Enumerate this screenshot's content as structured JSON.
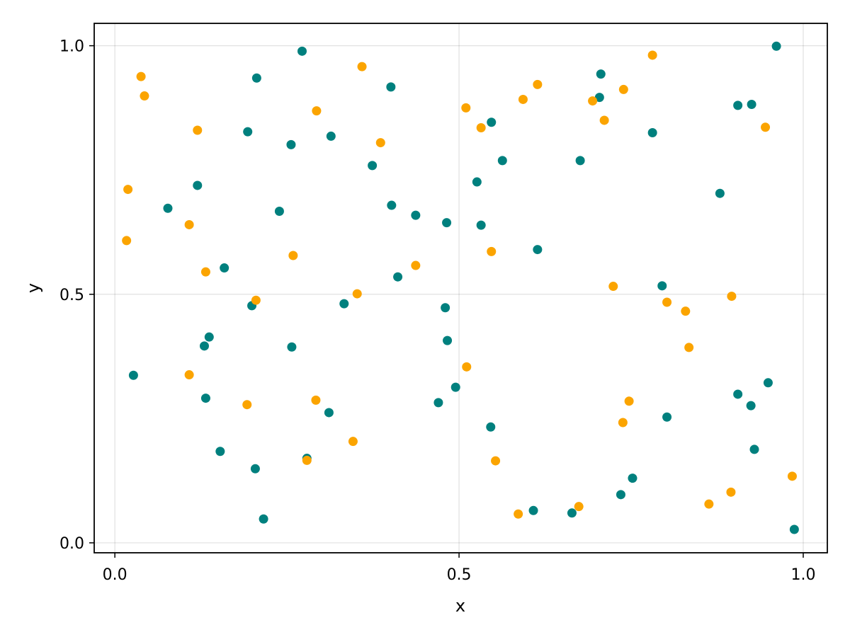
{
  "chart_data": {
    "type": "scatter",
    "title": "",
    "xlabel": "x",
    "ylabel": "y",
    "xlim": [
      -0.03,
      1.035
    ],
    "ylim": [
      -0.02,
      1.045
    ],
    "xticks": [
      0.0,
      0.5,
      1.0
    ],
    "yticks": [
      0.0,
      0.5,
      1.0
    ],
    "xtick_labels": [
      "0.0",
      "0.5",
      "1.0"
    ],
    "ytick_labels": [
      "0.0",
      "0.5",
      "1.0"
    ],
    "grid": true,
    "series": [
      {
        "color": "#00807e",
        "points": [
          [
            0.272,
            0.989
          ],
          [
            0.206,
            0.935
          ],
          [
            0.401,
            0.917
          ],
          [
            0.193,
            0.827
          ],
          [
            0.314,
            0.818
          ],
          [
            0.256,
            0.801
          ],
          [
            0.374,
            0.759
          ],
          [
            0.12,
            0.719
          ],
          [
            0.077,
            0.673
          ],
          [
            0.402,
            0.679
          ],
          [
            0.239,
            0.667
          ],
          [
            0.437,
            0.659
          ],
          [
            0.482,
            0.644
          ],
          [
            0.159,
            0.553
          ],
          [
            0.411,
            0.535
          ],
          [
            0.333,
            0.481
          ],
          [
            0.199,
            0.477
          ],
          [
            0.48,
            0.473
          ],
          [
            0.137,
            0.414
          ],
          [
            0.13,
            0.396
          ],
          [
            0.257,
            0.394
          ],
          [
            0.483,
            0.407
          ],
          [
            0.027,
            0.337
          ],
          [
            0.495,
            0.313
          ],
          [
            0.132,
            0.291
          ],
          [
            0.47,
            0.282
          ],
          [
            0.311,
            0.262
          ],
          [
            0.153,
            0.184
          ],
          [
            0.279,
            0.17
          ],
          [
            0.204,
            0.149
          ],
          [
            0.216,
            0.048
          ],
          [
            0.547,
            0.846
          ],
          [
            0.563,
            0.769
          ],
          [
            0.526,
            0.726
          ],
          [
            0.532,
            0.639
          ],
          [
            0.614,
            0.59
          ],
          [
            0.546,
            0.233
          ],
          [
            0.608,
            0.065
          ],
          [
            0.664,
            0.06
          ],
          [
            0.676,
            0.769
          ],
          [
            0.706,
            0.943
          ],
          [
            0.704,
            0.896
          ],
          [
            0.781,
            0.825
          ],
          [
            0.879,
            0.703
          ],
          [
            0.795,
            0.517
          ],
          [
            0.905,
            0.88
          ],
          [
            0.925,
            0.882
          ],
          [
            0.961,
            0.999
          ],
          [
            0.949,
            0.322
          ],
          [
            0.905,
            0.299
          ],
          [
            0.924,
            0.276
          ],
          [
            0.802,
            0.253
          ],
          [
            0.929,
            0.188
          ],
          [
            0.752,
            0.13
          ],
          [
            0.735,
            0.097
          ],
          [
            0.987,
            0.027
          ]
        ]
      },
      {
        "color": "#fba400",
        "points": [
          [
            0.038,
            0.938
          ],
          [
            0.043,
            0.899
          ],
          [
            0.12,
            0.83
          ],
          [
            0.019,
            0.711
          ],
          [
            0.017,
            0.608
          ],
          [
            0.108,
            0.64
          ],
          [
            0.132,
            0.545
          ],
          [
            0.108,
            0.338
          ],
          [
            0.205,
            0.488
          ],
          [
            0.259,
            0.578
          ],
          [
            0.293,
            0.869
          ],
          [
            0.359,
            0.958
          ],
          [
            0.386,
            0.805
          ],
          [
            0.437,
            0.558
          ],
          [
            0.352,
            0.501
          ],
          [
            0.292,
            0.287
          ],
          [
            0.192,
            0.278
          ],
          [
            0.279,
            0.166
          ],
          [
            0.346,
            0.204
          ],
          [
            0.51,
            0.875
          ],
          [
            0.532,
            0.835
          ],
          [
            0.593,
            0.892
          ],
          [
            0.614,
            0.922
          ],
          [
            0.547,
            0.586
          ],
          [
            0.511,
            0.354
          ],
          [
            0.553,
            0.165
          ],
          [
            0.586,
            0.058
          ],
          [
            0.694,
            0.889
          ],
          [
            0.711,
            0.85
          ],
          [
            0.739,
            0.912
          ],
          [
            0.724,
            0.516
          ],
          [
            0.738,
            0.242
          ],
          [
            0.747,
            0.285
          ],
          [
            0.674,
            0.073
          ],
          [
            0.781,
            0.981
          ],
          [
            0.802,
            0.484
          ],
          [
            0.829,
            0.466
          ],
          [
            0.834,
            0.393
          ],
          [
            0.896,
            0.496
          ],
          [
            0.945,
            0.836
          ],
          [
            0.895,
            0.102
          ],
          [
            0.863,
            0.078
          ],
          [
            0.984,
            0.134
          ]
        ]
      }
    ]
  }
}
